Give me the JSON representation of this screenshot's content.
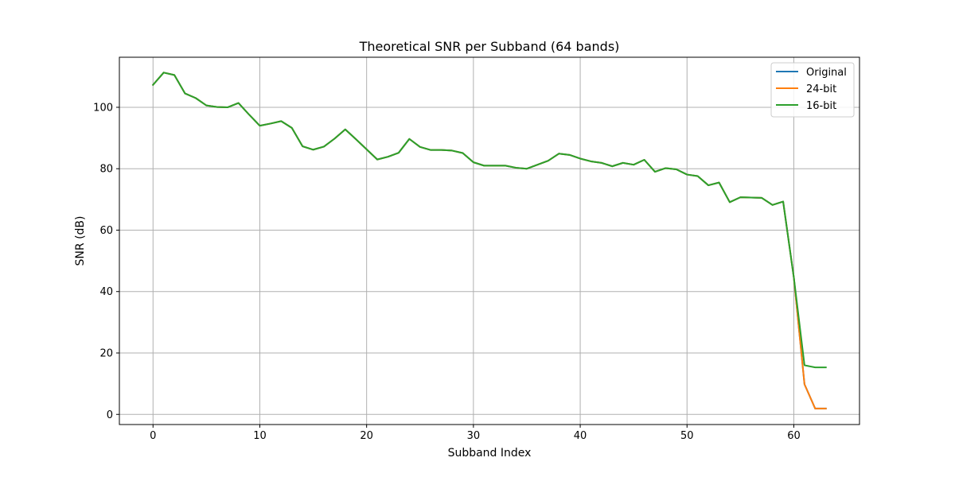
{
  "chart_data": {
    "type": "line",
    "title": "Theoretical SNR per Subband (64 bands)",
    "xlabel": "Subband Index",
    "ylabel": "SNR (dB)",
    "xlim": [
      -3.15,
      66.15
    ],
    "ylim": [
      -3.3,
      116.3
    ],
    "xticks": [
      0,
      10,
      20,
      30,
      40,
      50,
      60
    ],
    "yticks": [
      0,
      20,
      40,
      60,
      80,
      100
    ],
    "grid": true,
    "legend_position": "top-right",
    "x": [
      0,
      1,
      2,
      3,
      4,
      5,
      6,
      7,
      8,
      9,
      10,
      11,
      12,
      13,
      14,
      15,
      16,
      17,
      18,
      19,
      20,
      21,
      22,
      23,
      24,
      25,
      26,
      27,
      28,
      29,
      30,
      31,
      32,
      33,
      34,
      35,
      36,
      37,
      38,
      39,
      40,
      41,
      42,
      43,
      44,
      45,
      46,
      47,
      48,
      49,
      50,
      51,
      52,
      53,
      54,
      55,
      56,
      57,
      58,
      59,
      60,
      61,
      62,
      63
    ],
    "series": [
      {
        "name": "Original",
        "color": "#1f77b4",
        "values": [
          107.3,
          111.3,
          110.5,
          104.5,
          103.0,
          100.6,
          100.1,
          100.0,
          101.4,
          97.6,
          94.0,
          94.7,
          95.5,
          93.3,
          87.3,
          86.2,
          87.2,
          89.8,
          92.8,
          89.6,
          86.3,
          83.0,
          83.9,
          85.2,
          89.7,
          87.1,
          86.1,
          86.1,
          85.9,
          85.1,
          82.1,
          81.0,
          81.0,
          81.0,
          80.3,
          80.0,
          81.3,
          82.6,
          84.9,
          84.5,
          83.3,
          82.4,
          81.9,
          80.8,
          81.9,
          81.3,
          82.9,
          79.0,
          80.2,
          79.8,
          78.1,
          77.6,
          74.6,
          75.5,
          69.1,
          70.7,
          70.6,
          70.5,
          68.2,
          69.3,
          44.6,
          9.8,
          1.9,
          1.9
        ]
      },
      {
        "name": "24-bit",
        "color": "#ff7f0e",
        "values": [
          107.3,
          111.3,
          110.5,
          104.5,
          103.0,
          100.6,
          100.1,
          100.0,
          101.4,
          97.6,
          94.0,
          94.7,
          95.5,
          93.3,
          87.3,
          86.2,
          87.2,
          89.8,
          92.8,
          89.6,
          86.3,
          83.0,
          83.9,
          85.2,
          89.7,
          87.1,
          86.1,
          86.1,
          85.9,
          85.1,
          82.1,
          81.0,
          81.0,
          81.0,
          80.3,
          80.0,
          81.3,
          82.6,
          84.9,
          84.5,
          83.3,
          82.4,
          81.9,
          80.8,
          81.9,
          81.3,
          82.9,
          79.0,
          80.2,
          79.8,
          78.1,
          77.6,
          74.6,
          75.5,
          69.1,
          70.7,
          70.6,
          70.5,
          68.2,
          69.3,
          44.6,
          9.8,
          1.9,
          1.9
        ]
      },
      {
        "name": "16-bit",
        "color": "#2ca02c",
        "values": [
          107.3,
          111.3,
          110.5,
          104.5,
          103.0,
          100.6,
          100.1,
          100.0,
          101.4,
          97.6,
          94.0,
          94.7,
          95.5,
          93.3,
          87.3,
          86.2,
          87.2,
          89.8,
          92.8,
          89.6,
          86.3,
          83.0,
          83.9,
          85.2,
          89.7,
          87.1,
          86.1,
          86.1,
          85.9,
          85.1,
          82.1,
          81.0,
          81.0,
          81.0,
          80.3,
          80.0,
          81.3,
          82.6,
          84.9,
          84.5,
          83.3,
          82.4,
          81.9,
          80.8,
          81.9,
          81.3,
          82.9,
          79.0,
          80.2,
          79.8,
          78.1,
          77.6,
          74.6,
          75.5,
          69.1,
          70.7,
          70.6,
          70.5,
          68.2,
          69.3,
          44.6,
          16.0,
          15.3,
          15.3
        ]
      }
    ]
  }
}
